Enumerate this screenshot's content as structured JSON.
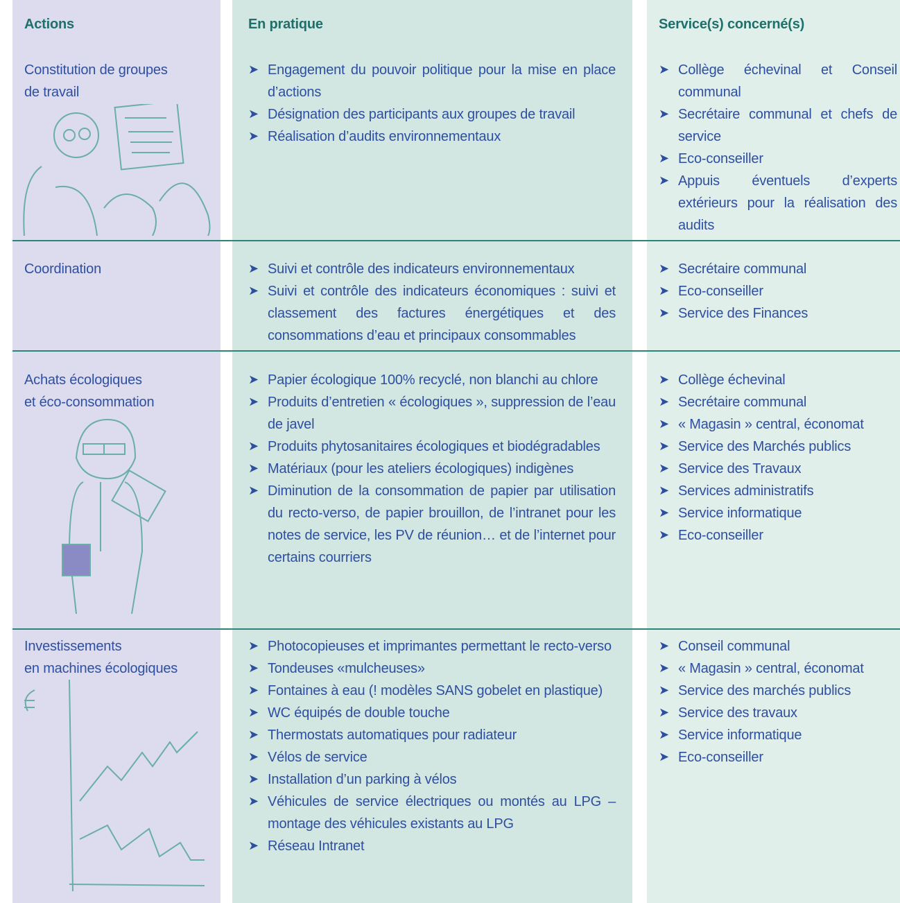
{
  "header": {
    "actions": "Actions",
    "practice": "En pratique",
    "services": "Service(s) concerné(s)"
  },
  "rows": [
    {
      "action": [
        "Constitution de groupes",
        "de travail"
      ],
      "practice": [
        "Engagement du pouvoir politique pour la mise en place d’actions",
        "Désignation des participants aux groupes de travail",
        "Réalisation d’audits environnementaux"
      ],
      "services": [
        "Collège échevinal et Conseil communal",
        "Secrétaire communal et chefs de service",
        "Eco-conseiller",
        "Appuis éventuels d’experts extérieurs pour la réalisation des audits"
      ]
    },
    {
      "action": [
        "Coordination"
      ],
      "practice": [
        "Suivi et contrôle des indicateurs environnementaux",
        "Suivi et contrôle des indicateurs économiques : suivi et classement des factures énergétiques et des consommations d’eau et principaux consommables"
      ],
      "services": [
        "Secrétaire communal",
        "Eco-conseiller",
        "Service des Finances"
      ]
    },
    {
      "action": [
        "Achats écologiques",
        "et éco-consommation"
      ],
      "practice": [
        "Papier écologique 100% recyclé, non blanchi au chlore",
        "Produits d’entretien « écologiques », suppression de l’eau de javel",
        "Produits phytosanitaires écologiques et biodégradables",
        "Matériaux (pour les ateliers écologiques) indigènes",
        "Diminution de la consommation de papier par utilisation du recto-verso, de papier brouillon, de l’intranet pour les notes de service, les PV de réunion… et de l’internet pour certains courriers"
      ],
      "services": [
        "Collège échevinal",
        "Secrétaire communal",
        "« Magasin » central, économat",
        "Service des Marchés publics",
        "Service des Travaux",
        "Services administratifs",
        "Service informatique",
        "Eco-conseiller"
      ]
    },
    {
      "action": [
        "Investissements",
        "en machines écologiques"
      ],
      "practice": [
        "Photocopieuses et imprimantes permettant le recto-verso",
        "Tondeuses «mulcheuses»",
        "Fontaines à eau (! modèles SANS gobelet en plastique)",
        "WC équipés de double touche",
        "Thermostats automatiques pour radiateur",
        "Vélos de service",
        "Installation d’un parking à vélos",
        "Véhicules de service électriques ou montés au LPG – montage des véhicules existants au LPG",
        "Réseau Intranet"
      ],
      "services": [
        "Conseil communal",
        "« Magasin » central, économat",
        "Service des marchés publics",
        "Service des travaux",
        "Service informatique",
        "Eco-conseiller"
      ]
    }
  ]
}
